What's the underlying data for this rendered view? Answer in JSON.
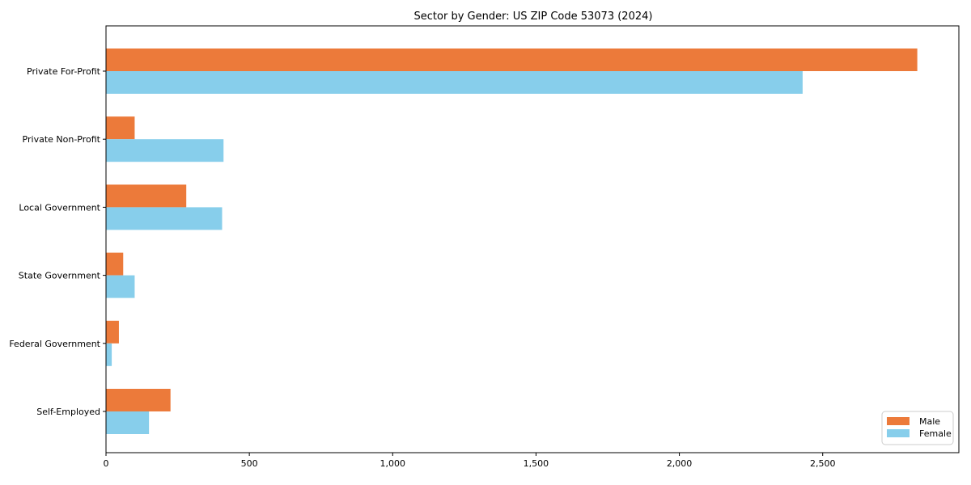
{
  "chart_data": {
    "type": "bar",
    "orientation": "horizontal",
    "title": "Sector by Gender: US ZIP Code 53073 (2024)",
    "categories": [
      "Private For-Profit",
      "Private Non-Profit",
      "Local Government",
      "State Government",
      "Federal Government",
      "Self-Employed"
    ],
    "series": [
      {
        "name": "Male",
        "color": "#ec7a3a",
        "values": [
          2830,
          100,
          280,
          60,
          45,
          225
        ]
      },
      {
        "name": "Female",
        "color": "#87ceeb",
        "values": [
          2430,
          410,
          405,
          100,
          20,
          150
        ]
      }
    ],
    "xlabel": "",
    "ylabel": "",
    "xlim": [
      0,
      2975
    ],
    "xticks": [
      0,
      500,
      1000,
      1500,
      2000,
      2500
    ],
    "xtick_labels": [
      "0",
      "500",
      "1,000",
      "1,500",
      "2,000",
      "2,500"
    ],
    "grid": false,
    "legend": {
      "position": "lower right",
      "entries": [
        "Male",
        "Female"
      ]
    }
  }
}
